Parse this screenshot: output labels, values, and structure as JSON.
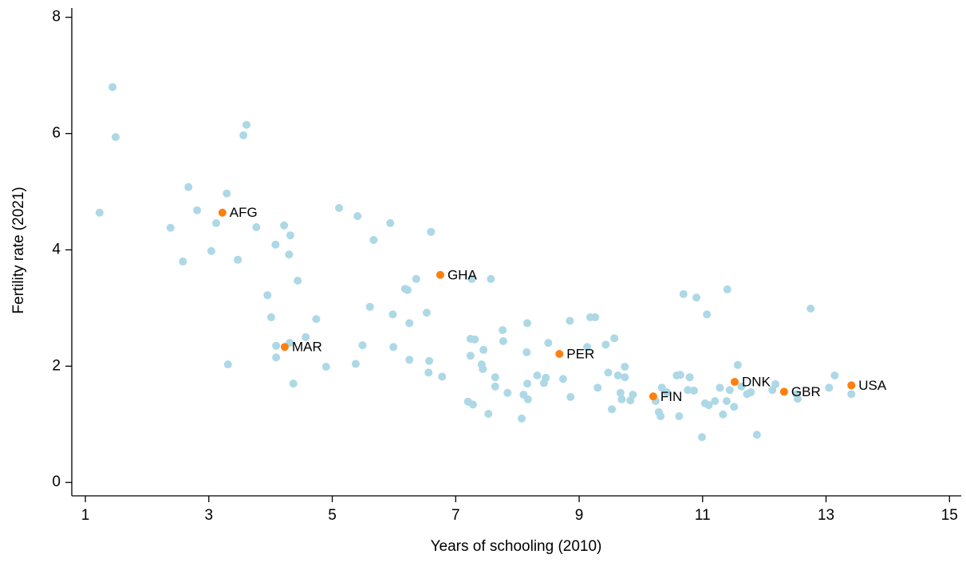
{
  "chart_data": {
    "type": "scatter",
    "x_label": "Years of schooling (2010)",
    "y_label": "Fertility rate (2021)",
    "xlim": [
      0.78,
      15.19
    ],
    "ylim": [
      -0.23,
      8.16
    ],
    "xticks": [
      1,
      3,
      5,
      7,
      9,
      11,
      13,
      15
    ],
    "yticks": [
      0,
      2,
      4,
      6,
      8
    ],
    "grid": false,
    "series": [
      {
        "color": "#add8e6",
        "x": [
          1.23,
          1.44,
          1.49,
          2.38,
          2.58,
          2.67,
          2.81,
          3.04,
          3.12,
          3.29,
          3.31,
          3.47,
          3.56,
          3.61,
          3.77,
          3.95,
          4.01,
          4.08,
          4.09,
          4.09,
          4.22,
          4.3,
          4.32,
          4.31,
          4.37,
          4.44,
          4.57,
          4.74,
          4.9,
          5.11,
          5.38,
          5.41,
          5.49,
          5.61,
          5.67,
          5.94,
          5.98,
          5.99,
          6.18,
          6.22,
          6.25,
          6.25,
          6.36,
          6.53,
          6.57,
          6.56,
          6.6,
          6.78,
          7.2,
          7.24,
          7.24,
          7.26,
          7.31,
          7.28,
          7.45,
          7.42,
          7.44,
          7.53,
          7.57,
          7.64,
          7.64,
          7.76,
          7.77,
          7.84,
          8.07,
          8.1,
          8.15,
          8.16,
          8.16,
          8.17,
          8.32,
          8.43,
          8.46,
          8.5,
          8.74,
          8.85,
          8.86,
          9.13,
          9.18,
          9.26,
          9.3,
          9.43,
          9.47,
          9.53,
          9.57,
          9.63,
          9.67,
          9.69,
          9.74,
          9.74,
          9.83,
          9.87,
          10.24,
          10.29,
          10.32,
          10.34,
          10.42,
          10.58,
          10.62,
          10.64,
          10.69,
          10.76,
          10.79,
          10.86,
          10.9,
          10.99,
          11.04,
          11.07,
          11.1,
          11.2,
          11.28,
          11.33,
          11.39,
          11.4,
          11.44,
          11.51,
          11.57,
          11.63,
          11.72,
          11.78,
          11.88,
          12.13,
          12.18,
          12.52,
          12.54,
          12.75,
          13.05,
          13.14,
          13.41
        ],
        "values": [
          4.64,
          6.8,
          5.94,
          4.38,
          3.8,
          5.08,
          4.68,
          3.98,
          4.46,
          4.97,
          2.03,
          3.83,
          5.97,
          6.15,
          4.39,
          3.22,
          2.84,
          4.09,
          2.35,
          2.15,
          4.42,
          3.92,
          4.25,
          2.4,
          1.7,
          3.47,
          2.5,
          2.81,
          1.99,
          4.72,
          2.04,
          4.58,
          2.36,
          3.02,
          4.17,
          4.46,
          2.89,
          2.33,
          3.33,
          3.31,
          2.11,
          2.74,
          3.5,
          2.92,
          2.09,
          1.89,
          4.31,
          1.82,
          1.39,
          2.47,
          2.18,
          3.5,
          2.46,
          1.34,
          2.28,
          2.03,
          1.95,
          1.18,
          3.5,
          1.81,
          1.65,
          2.62,
          2.43,
          1.54,
          1.1,
          1.51,
          2.24,
          1.7,
          2.74,
          1.43,
          1.84,
          1.71,
          1.8,
          2.4,
          1.78,
          2.78,
          1.47,
          2.33,
          2.84,
          2.84,
          1.63,
          2.37,
          1.89,
          1.26,
          2.48,
          1.84,
          1.54,
          1.43,
          1.99,
          1.81,
          1.41,
          1.51,
          1.4,
          1.21,
          1.14,
          1.63,
          1.55,
          1.84,
          1.14,
          1.85,
          3.24,
          1.59,
          1.81,
          1.58,
          3.18,
          0.78,
          1.36,
          2.89,
          1.33,
          1.4,
          1.63,
          1.17,
          1.4,
          3.32,
          1.59,
          1.3,
          2.02,
          1.65,
          1.52,
          1.55,
          0.82,
          1.59,
          1.69,
          1.52,
          1.44,
          2.99,
          1.63,
          1.84,
          1.52
        ]
      },
      {
        "color": "#ff7f0e",
        "labels": [
          "AFG",
          "MAR",
          "GHA",
          "PER",
          "FIN",
          "DNK",
          "GBR",
          "USA"
        ],
        "x": [
          3.22,
          4.23,
          6.75,
          8.68,
          10.2,
          11.52,
          12.32,
          13.41
        ],
        "values": [
          4.64,
          2.33,
          3.57,
          2.21,
          1.48,
          1.73,
          1.56,
          1.67
        ]
      }
    ]
  }
}
